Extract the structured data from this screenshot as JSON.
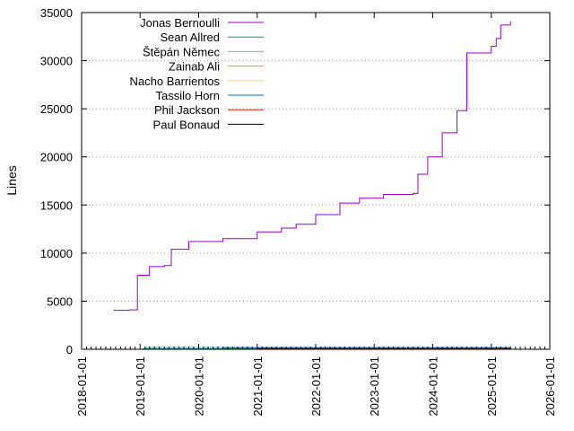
{
  "chart_data": {
    "type": "line",
    "title": "",
    "xlabel": "",
    "ylabel": "Lines",
    "ylim": [
      0,
      35000
    ],
    "xlim": [
      "2018-01-01",
      "2026-01-01"
    ],
    "y_ticks": [
      "0",
      "5000",
      "10000",
      "15000",
      "20000",
      "25000",
      "30000",
      "35000"
    ],
    "x_ticks": [
      "2018-01-01",
      "2019-01-01",
      "2020-01-01",
      "2021-01-01",
      "2022-01-01",
      "2023-01-01",
      "2024-01-01",
      "2025-01-01",
      "2026-01-01"
    ],
    "grid": "horizontal dotted at y ticks",
    "legend_position": "top-left",
    "series": [
      {
        "name": "Jonas Bernoulli",
        "color": "#9400d3",
        "points": [
          [
            "2018-07-20",
            4050
          ],
          [
            "2018-10-25",
            4100
          ],
          [
            "2018-12-15",
            7700
          ],
          [
            "2019-03-01",
            8600
          ],
          [
            "2019-06-01",
            8700
          ],
          [
            "2019-07-15",
            10400
          ],
          [
            "2019-11-01",
            11200
          ],
          [
            "2020-06-01",
            11500
          ],
          [
            "2021-01-01",
            12200
          ],
          [
            "2021-06-01",
            12600
          ],
          [
            "2021-09-01",
            13000
          ],
          [
            "2022-01-01",
            14000
          ],
          [
            "2022-06-01",
            15200
          ],
          [
            "2022-10-01",
            15700
          ],
          [
            "2023-03-01",
            16100
          ],
          [
            "2023-09-01",
            16200
          ],
          [
            "2023-10-01",
            18200
          ],
          [
            "2023-12-01",
            20000
          ],
          [
            "2024-03-01",
            22500
          ],
          [
            "2024-06-01",
            24800
          ],
          [
            "2024-08-01",
            30800
          ],
          [
            "2025-01-01",
            31500
          ],
          [
            "2025-02-01",
            32300
          ],
          [
            "2025-03-01",
            33700
          ],
          [
            "2025-05-01",
            34100
          ]
        ]
      },
      {
        "name": "Sean Allred",
        "color": "#009e73",
        "points": [
          [
            "2019-01-15",
            60
          ],
          [
            "2025-05-01",
            60
          ]
        ]
      },
      {
        "name": "Štěpán Němec",
        "color": "#56b4e9",
        "points": [
          [
            "2019-02-01",
            200
          ],
          [
            "2025-05-01",
            200
          ]
        ]
      },
      {
        "name": "Zainab Ali",
        "color": "#e69f00",
        "points": [
          [
            "2021-01-01",
            120
          ],
          [
            "2025-05-01",
            120
          ]
        ]
      },
      {
        "name": "Nacho Barrientos",
        "color": "#f0e442",
        "points": [
          [
            "2021-01-01",
            100
          ],
          [
            "2025-05-01",
            100
          ]
        ]
      },
      {
        "name": "Tassilo Horn",
        "color": "#0072b2",
        "points": [
          [
            "2020-06-01",
            150
          ],
          [
            "2025-05-01",
            150
          ]
        ]
      },
      {
        "name": "Phil Jackson",
        "color": "#e51e10",
        "points": [
          [
            "2021-01-01",
            80
          ],
          [
            "2025-05-01",
            80
          ]
        ]
      },
      {
        "name": "Paul Bonaud",
        "color": "#000000",
        "points": [
          [
            "2021-01-01",
            40
          ],
          [
            "2025-05-01",
            40
          ]
        ]
      }
    ]
  }
}
